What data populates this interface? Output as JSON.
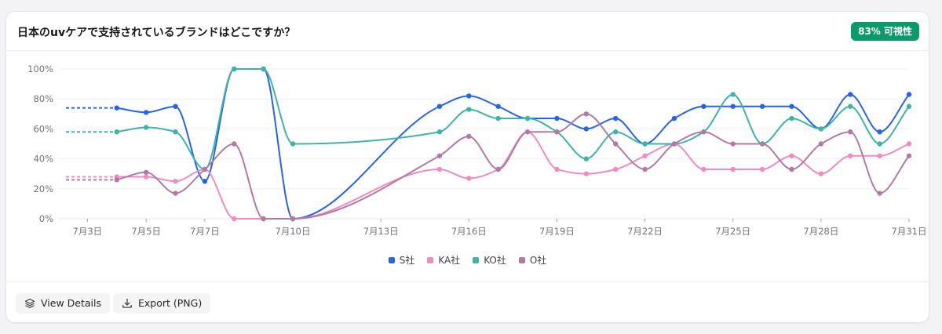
{
  "card": {
    "title": "日本のuvケアで支持されているブランドはどこですか？",
    "badge": "83% 可視性"
  },
  "footer": {
    "view_details_label": "View Details",
    "export_label": "Export (PNG)"
  },
  "colors": {
    "S社": "#2563eb",
    "KA社": "#f08cbd",
    "KO社": "#3fb3a8",
    "O社": "#b07aa4",
    "badge": "#0c9a6a"
  },
  "chart_data": {
    "type": "line",
    "title": "",
    "xlabel": "",
    "ylabel": "",
    "ylim": [
      0,
      100
    ],
    "x_start": 2,
    "x_end": 31,
    "y_ticks": [
      "0%",
      "20%",
      "40%",
      "60%",
      "80%",
      "100%"
    ],
    "x_ticks": [
      {
        "day": 3,
        "label": "7月3日"
      },
      {
        "day": 5,
        "label": "7月5日"
      },
      {
        "day": 7,
        "label": "7月7日"
      },
      {
        "day": 10,
        "label": "7月10日"
      },
      {
        "day": 13,
        "label": "7月13日"
      },
      {
        "day": 16,
        "label": "7月16日"
      },
      {
        "day": 19,
        "label": "7月19日"
      },
      {
        "day": 22,
        "label": "7月22日"
      },
      {
        "day": 25,
        "label": "7月25日"
      },
      {
        "day": 28,
        "label": "7月28日"
      },
      {
        "day": 31,
        "label": "7月31日"
      }
    ],
    "grid": true,
    "legend_position": "bottom",
    "series": [
      {
        "name": "S社",
        "points": [
          [
            4,
            74
          ],
          [
            5,
            71
          ],
          [
            6,
            75
          ],
          [
            7,
            25
          ],
          [
            8,
            100
          ],
          [
            9,
            100
          ],
          [
            10,
            0
          ],
          [
            15,
            75
          ],
          [
            16,
            82
          ],
          [
            17,
            75
          ],
          [
            18,
            67
          ],
          [
            19,
            67
          ],
          [
            20,
            60
          ],
          [
            21,
            67
          ],
          [
            22,
            50
          ],
          [
            23,
            67
          ],
          [
            24,
            75
          ],
          [
            25,
            75
          ],
          [
            26,
            75
          ],
          [
            27,
            75
          ],
          [
            28,
            60
          ],
          [
            29,
            83
          ],
          [
            30,
            58
          ],
          [
            31,
            83
          ]
        ]
      },
      {
        "name": "KA社",
        "points": [
          [
            4,
            28
          ],
          [
            5,
            28
          ],
          [
            6,
            25
          ],
          [
            7,
            33
          ],
          [
            8,
            0
          ],
          [
            9,
            0
          ],
          [
            10,
            0
          ],
          [
            15,
            33
          ],
          [
            16,
            27
          ],
          [
            17,
            33
          ],
          [
            18,
            58
          ],
          [
            19,
            33
          ],
          [
            20,
            30
          ],
          [
            21,
            33
          ],
          [
            22,
            42
          ],
          [
            23,
            50
          ],
          [
            24,
            33
          ],
          [
            25,
            33
          ],
          [
            26,
            33
          ],
          [
            27,
            42
          ],
          [
            28,
            30
          ],
          [
            29,
            42
          ],
          [
            30,
            42
          ],
          [
            31,
            50
          ]
        ]
      },
      {
        "name": "KO社",
        "points": [
          [
            4,
            58
          ],
          [
            5,
            61
          ],
          [
            6,
            58
          ],
          [
            7,
            33
          ],
          [
            8,
            100
          ],
          [
            9,
            100
          ],
          [
            10,
            50
          ],
          [
            15,
            58
          ],
          [
            16,
            73
          ],
          [
            17,
            67
          ],
          [
            18,
            67
          ],
          [
            19,
            58
          ],
          [
            20,
            40
          ],
          [
            21,
            58
          ],
          [
            22,
            50
          ],
          [
            23,
            50
          ],
          [
            24,
            58
          ],
          [
            25,
            83
          ],
          [
            26,
            50
          ],
          [
            27,
            67
          ],
          [
            28,
            60
          ],
          [
            29,
            75
          ],
          [
            30,
            50
          ],
          [
            31,
            75
          ]
        ]
      },
      {
        "name": "O社",
        "points": [
          [
            4,
            26
          ],
          [
            5,
            31
          ],
          [
            6,
            17
          ],
          [
            7,
            33
          ],
          [
            8,
            50
          ],
          [
            9,
            0
          ],
          [
            10,
            0
          ],
          [
            15,
            42
          ],
          [
            16,
            55
          ],
          [
            17,
            33
          ],
          [
            18,
            58
          ],
          [
            19,
            58
          ],
          [
            20,
            70
          ],
          [
            21,
            50
          ],
          [
            22,
            33
          ],
          [
            23,
            50
          ],
          [
            24,
            58
          ],
          [
            25,
            50
          ],
          [
            26,
            50
          ],
          [
            27,
            33
          ],
          [
            28,
            50
          ],
          [
            29,
            58
          ],
          [
            30,
            17
          ],
          [
            31,
            42
          ]
        ]
      }
    ]
  }
}
